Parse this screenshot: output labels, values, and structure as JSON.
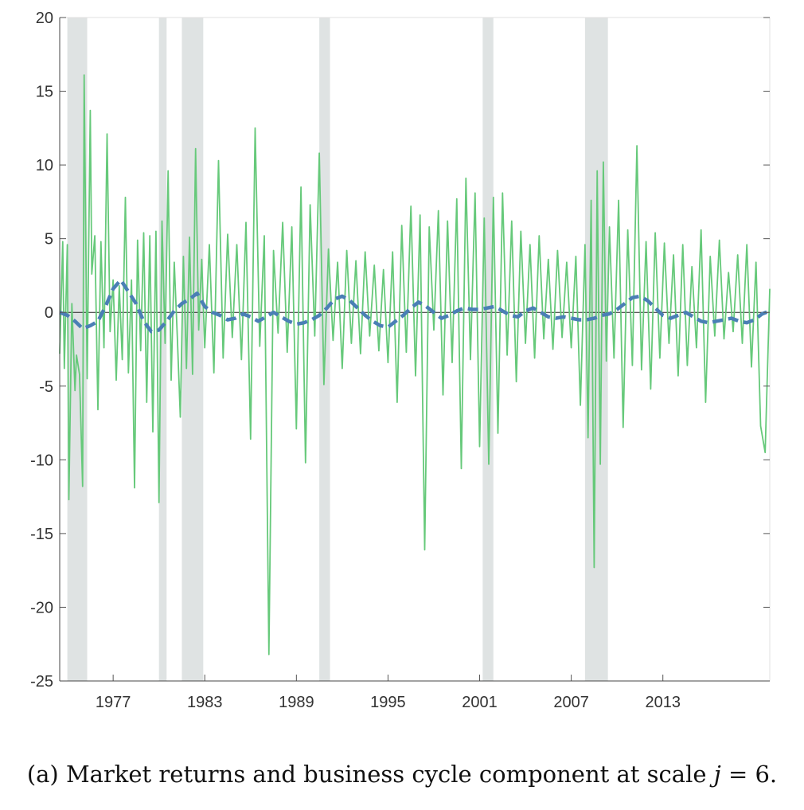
{
  "chart_data": {
    "type": "line",
    "title": "",
    "xlabel": "",
    "ylabel": "",
    "xlim": [
      1973.5,
      2020.0
    ],
    "ylim": [
      -25,
      20
    ],
    "x_ticks": [
      1977,
      1983,
      1989,
      1995,
      2001,
      2007,
      2013
    ],
    "x_tick_labels": [
      "1977",
      "1983",
      "1989",
      "1995",
      "2001",
      "2007",
      "2013"
    ],
    "y_ticks": [
      -25,
      -20,
      -15,
      -10,
      -5,
      0,
      5,
      10,
      15,
      20
    ],
    "y_tick_labels": [
      "-25",
      "-20",
      "-15",
      "-10",
      "-5",
      "0",
      "5",
      "10",
      "15",
      "20"
    ],
    "grid": false,
    "legend": "none",
    "recessions": [
      [
        1974.0,
        1975.3
      ],
      [
        1980.0,
        1980.5
      ],
      [
        1981.5,
        1982.9
      ],
      [
        1990.5,
        1991.2
      ],
      [
        2001.2,
        2001.9
      ],
      [
        2007.9,
        2009.4
      ]
    ],
    "series": [
      {
        "style": "solid",
        "color": "#66c97a",
        "x": [
          1973.5,
          1973.7,
          1973.8,
          1974.0,
          1974.1,
          1974.3,
          1974.5,
          1974.6,
          1974.8,
          1975.0,
          1975.1,
          1975.3,
          1975.5,
          1975.6,
          1975.8,
          1976.0,
          1976.2,
          1976.4,
          1976.6,
          1976.8,
          1977.0,
          1977.2,
          1977.4,
          1977.6,
          1977.8,
          1978.0,
          1978.2,
          1978.4,
          1978.6,
          1978.8,
          1979.0,
          1979.2,
          1979.4,
          1979.6,
          1979.8,
          1980.0,
          1980.2,
          1980.4,
          1980.6,
          1980.8,
          1981.0,
          1981.2,
          1981.4,
          1981.6,
          1981.8,
          1982.0,
          1982.2,
          1982.4,
          1982.6,
          1982.8,
          1983.0,
          1983.3,
          1983.6,
          1983.9,
          1984.2,
          1984.5,
          1984.8,
          1985.1,
          1985.4,
          1985.7,
          1986.0,
          1986.3,
          1986.6,
          1986.9,
          1987.2,
          1987.5,
          1987.8,
          1988.1,
          1988.4,
          1988.7,
          1989.0,
          1989.3,
          1989.6,
          1989.9,
          1990.2,
          1990.5,
          1990.8,
          1991.1,
          1991.4,
          1991.7,
          1992.0,
          1992.3,
          1992.6,
          1992.9,
          1993.2,
          1993.5,
          1993.8,
          1994.1,
          1994.4,
          1994.7,
          1995.0,
          1995.3,
          1995.6,
          1995.9,
          1996.2,
          1996.5,
          1996.8,
          1997.1,
          1997.4,
          1997.7,
          1998.0,
          1998.3,
          1998.6,
          1998.9,
          1999.2,
          1999.5,
          1999.8,
          2000.1,
          2000.4,
          2000.7,
          2001.0,
          2001.3,
          2001.6,
          2001.9,
          2002.2,
          2002.5,
          2002.8,
          2003.1,
          2003.4,
          2003.7,
          2004.0,
          2004.3,
          2004.6,
          2004.9,
          2005.2,
          2005.5,
          2005.8,
          2006.1,
          2006.4,
          2006.7,
          2007.0,
          2007.3,
          2007.6,
          2007.9,
          2008.1,
          2008.3,
          2008.5,
          2008.7,
          2008.9,
          2009.1,
          2009.3,
          2009.5,
          2009.8,
          2010.1,
          2010.4,
          2010.7,
          2011.0,
          2011.3,
          2011.6,
          2011.9,
          2012.2,
          2012.5,
          2012.8,
          2013.1,
          2013.4,
          2013.7,
          2014.0,
          2014.3,
          2014.6,
          2014.9,
          2015.2,
          2015.5,
          2015.8,
          2016.1,
          2016.4,
          2016.7,
          2017.0,
          2017.3,
          2017.6,
          2017.9,
          2018.2,
          2018.5,
          2018.8,
          2019.1,
          2019.4,
          2019.7,
          2020.0
        ],
        "y": [
          -2.8,
          4.8,
          -3.8,
          4.6,
          -12.7,
          0.6,
          -5.3,
          -2.9,
          -4.2,
          -11.8,
          16.1,
          -4.5,
          13.7,
          2.6,
          5.2,
          -6.6,
          4.8,
          -2.4,
          12.1,
          -1.3,
          2.2,
          -4.6,
          1.8,
          -3.2,
          7.8,
          -4.1,
          2.2,
          -11.9,
          4.9,
          -2.6,
          5.4,
          -6.1,
          5.2,
          -8.1,
          5.5,
          -12.9,
          6.2,
          -2.1,
          9.6,
          -4.6,
          3.4,
          -1.6,
          -7.1,
          3.8,
          -3.8,
          5.1,
          -4.2,
          11.1,
          -1.2,
          3.6,
          -2.4,
          4.6,
          -4.1,
          10.3,
          -3.1,
          5.3,
          -1.7,
          4.6,
          -3.2,
          6.1,
          -8.6,
          12.5,
          -2.3,
          5.2,
          -23.2,
          4.2,
          -1.4,
          6.1,
          -2.7,
          5.8,
          -7.9,
          8.5,
          -10.2,
          7.3,
          -1.6,
          10.8,
          -4.9,
          4.3,
          -1.9,
          3.4,
          -3.8,
          4.2,
          -2.1,
          3.5,
          -2.8,
          4.1,
          -1.6,
          3.2,
          -2.6,
          2.9,
          -3.4,
          4.1,
          -6.1,
          5.9,
          -2.7,
          7.2,
          -4.3,
          6.6,
          -16.1,
          5.8,
          -1.2,
          6.9,
          -5.6,
          6.2,
          -3.4,
          7.7,
          -10.6,
          9.1,
          -3.2,
          8.1,
          -9.1,
          6.4,
          -10.3,
          7.8,
          -8.2,
          8.1,
          -2.9,
          6.2,
          -4.7,
          5.5,
          -2.1,
          4.6,
          -3.1,
          5.2,
          -1.8,
          3.6,
          -2.5,
          4.2,
          -1.7,
          3.4,
          -2.4,
          3.8,
          -6.3,
          4.6,
          -8.5,
          7.6,
          -17.3,
          9.6,
          -10.3,
          10.2,
          -3.3,
          5.8,
          -3.1,
          7.6,
          -7.8,
          5.6,
          -3.6,
          11.3,
          -3.9,
          4.8,
          -5.2,
          5.4,
          -3.1,
          4.7,
          -2.1,
          3.9,
          -4.3,
          4.6,
          -3.6,
          3.1,
          -2.4,
          5.6,
          -6.1,
          3.8,
          -1.6,
          4.9,
          -1.8,
          2.7,
          -1.3,
          3.9,
          -2.1,
          4.6,
          -3.7,
          3.4,
          -7.7,
          -9.5,
          1.6
        ]
      },
      {
        "style": "dashed",
        "color": "#4a7fb5",
        "x": [
          1973.5,
          1974.0,
          1974.5,
          1975.0,
          1975.5,
          1976.0,
          1976.5,
          1977.0,
          1977.5,
          1978.0,
          1978.5,
          1979.0,
          1979.5,
          1980.0,
          1980.5,
          1981.0,
          1981.5,
          1982.0,
          1982.5,
          1983.0,
          1983.5,
          1984.0,
          1984.5,
          1985.0,
          1985.5,
          1986.0,
          1986.5,
          1987.0,
          1987.5,
          1988.0,
          1988.5,
          1989.0,
          1989.5,
          1990.0,
          1990.5,
          1991.0,
          1991.5,
          1992.0,
          1992.5,
          1993.0,
          1993.5,
          1994.0,
          1994.5,
          1995.0,
          1995.5,
          1996.0,
          1996.5,
          1997.0,
          1997.5,
          1998.0,
          1998.5,
          1999.0,
          1999.5,
          2000.0,
          2000.5,
          2001.0,
          2001.5,
          2002.0,
          2002.5,
          2003.0,
          2003.5,
          2004.0,
          2004.5,
          2005.0,
          2005.5,
          2006.0,
          2006.5,
          2007.0,
          2007.5,
          2008.0,
          2008.5,
          2009.0,
          2009.5,
          2010.0,
          2010.5,
          2011.0,
          2011.5,
          2012.0,
          2012.5,
          2013.0,
          2013.5,
          2014.0,
          2014.5,
          2015.0,
          2015.5,
          2016.0,
          2016.5,
          2017.0,
          2017.5,
          2018.0,
          2018.5,
          2019.0,
          2019.5,
          2020.0
        ],
        "y": [
          0.0,
          -0.2,
          -0.6,
          -1.1,
          -0.9,
          -0.6,
          0.4,
          1.6,
          2.2,
          1.4,
          0.6,
          -0.6,
          -1.3,
          -1.2,
          -0.6,
          0.1,
          0.6,
          0.9,
          1.3,
          0.4,
          0.0,
          -0.2,
          -0.5,
          -0.4,
          -0.1,
          -0.3,
          -0.6,
          -0.3,
          0.0,
          -0.3,
          -0.6,
          -0.8,
          -0.7,
          -0.5,
          -0.2,
          0.3,
          0.9,
          1.1,
          0.8,
          0.3,
          -0.2,
          -0.6,
          -0.9,
          -1.0,
          -0.6,
          -0.2,
          0.3,
          0.7,
          0.4,
          0.0,
          -0.4,
          -0.2,
          0.1,
          0.3,
          0.2,
          0.2,
          0.3,
          0.4,
          0.1,
          -0.2,
          -0.3,
          0.1,
          0.3,
          0.0,
          -0.3,
          -0.4,
          -0.3,
          -0.4,
          -0.5,
          -0.5,
          -0.4,
          -0.2,
          -0.1,
          0.2,
          0.6,
          1.0,
          1.1,
          0.8,
          0.3,
          -0.2,
          -0.4,
          -0.2,
          0.0,
          -0.3,
          -0.6,
          -0.7,
          -0.6,
          -0.5,
          -0.4,
          -0.6,
          -0.7,
          -0.5,
          -0.1,
          0.1
        ]
      }
    ]
  },
  "caption": {
    "prefix": "(a) Market returns and business cycle component at scale ",
    "variable": "j",
    "suffix": " = 6."
  }
}
